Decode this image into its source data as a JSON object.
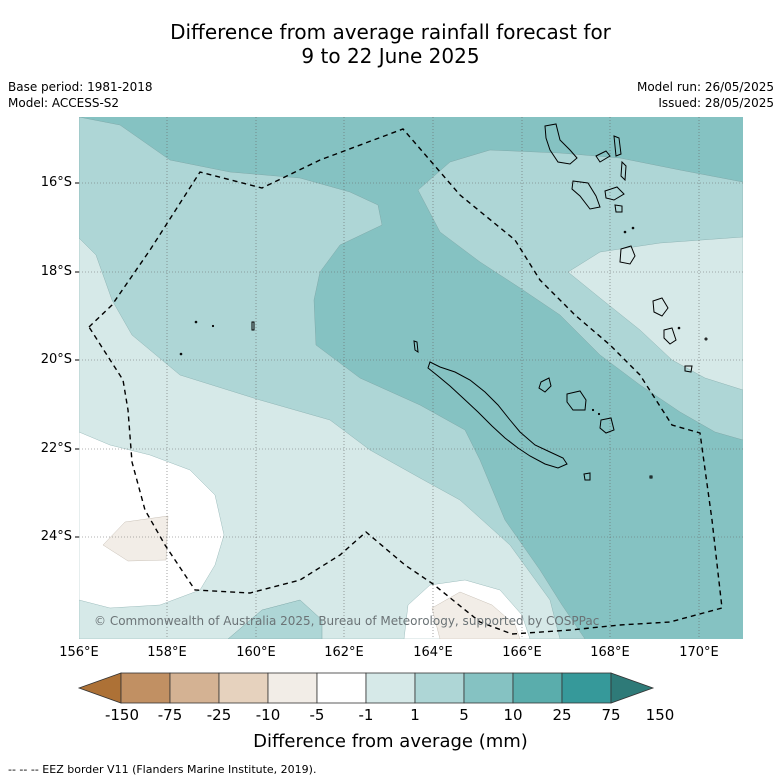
{
  "title_line1": "Difference from average rainfall forecast for",
  "title_line2": "9 to 22 June 2025",
  "base_period": "Base period: 1981-2018",
  "model": "Model: ACCESS-S2",
  "model_run": "Model run: 26/05/2025",
  "issued": "Issued: 28/05/2025",
  "lat_labels": [
    "16°S",
    "18°S",
    "20°S",
    "22°S",
    "24°S"
  ],
  "lon_labels": [
    "156°E",
    "158°E",
    "160°E",
    "162°E",
    "164°E",
    "166°E",
    "168°E",
    "170°E"
  ],
  "colorbar": {
    "ticks": [
      "-150",
      "-75",
      "-25",
      "-10",
      "-5",
      "-1",
      "1",
      "5",
      "10",
      "25",
      "75",
      "150"
    ],
    "colors": [
      "#ad7136",
      "#c19063",
      "#d4b293",
      "#e6d2be",
      "#f2ede7",
      "#ffffff",
      "#d6e9e8",
      "#aed6d6",
      "#85c2c2",
      "#5aadac",
      "#36999a",
      "#2e7a78"
    ],
    "title": "Difference from average (mm)"
  },
  "copyright": "© Commonwealth of Australia 2025, Bureau of Meteorology, supported by COSPPac",
  "footer": "--  --  -- EEZ border V11 (Flanders Marine Institute, 2019)."
}
